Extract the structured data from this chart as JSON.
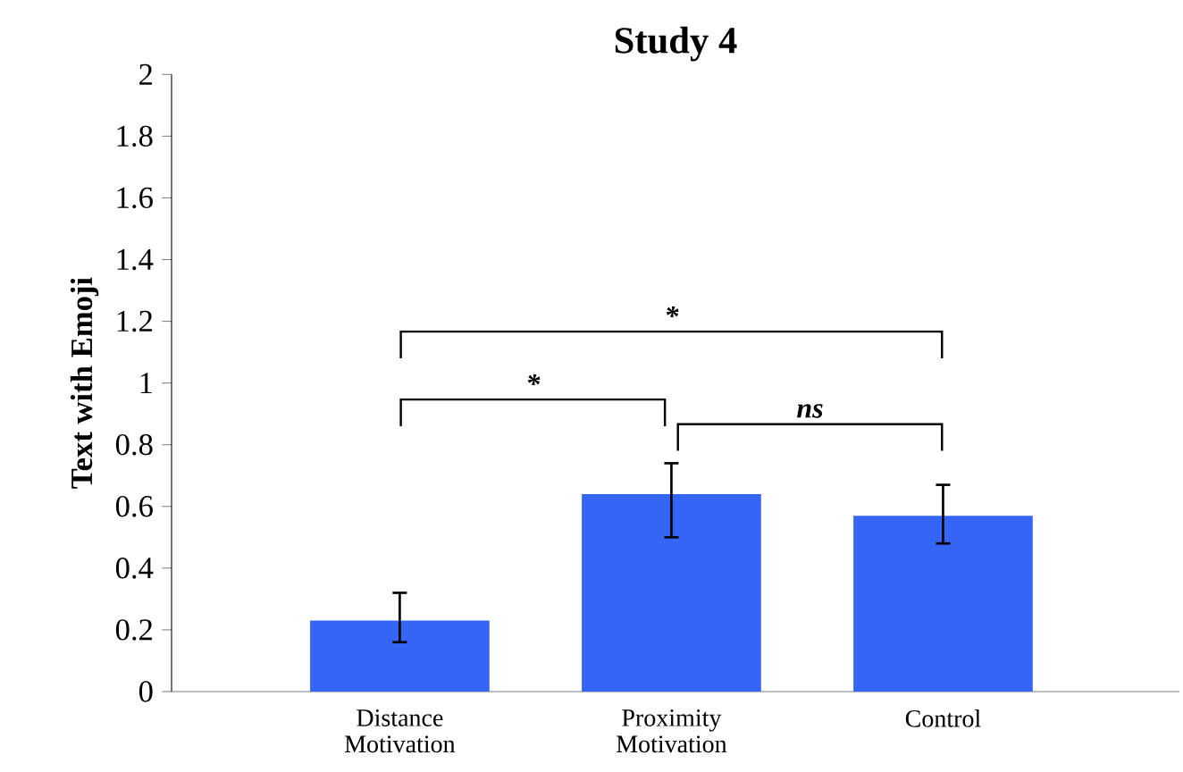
{
  "chart_data": {
    "type": "bar",
    "title": "Study 4",
    "ylabel": "Text with Emoji",
    "categories": [
      "Distance Motivation",
      "Proximity Motivation",
      "Control"
    ],
    "values": [
      0.23,
      0.64,
      0.57
    ],
    "color": "#3565f5",
    "errors": [
      [
        0.16,
        0.32
      ],
      [
        0.5,
        0.74
      ],
      [
        0.48,
        0.67
      ]
    ],
    "ylim": [
      0,
      2
    ],
    "yticks": [
      0,
      0.2,
      0.4,
      0.6,
      0.8,
      1,
      1.2,
      1.4,
      1.6,
      1.8,
      2
    ],
    "annotations": [
      "*",
      "*",
      "ns"
    ],
    "grid": false
  }
}
